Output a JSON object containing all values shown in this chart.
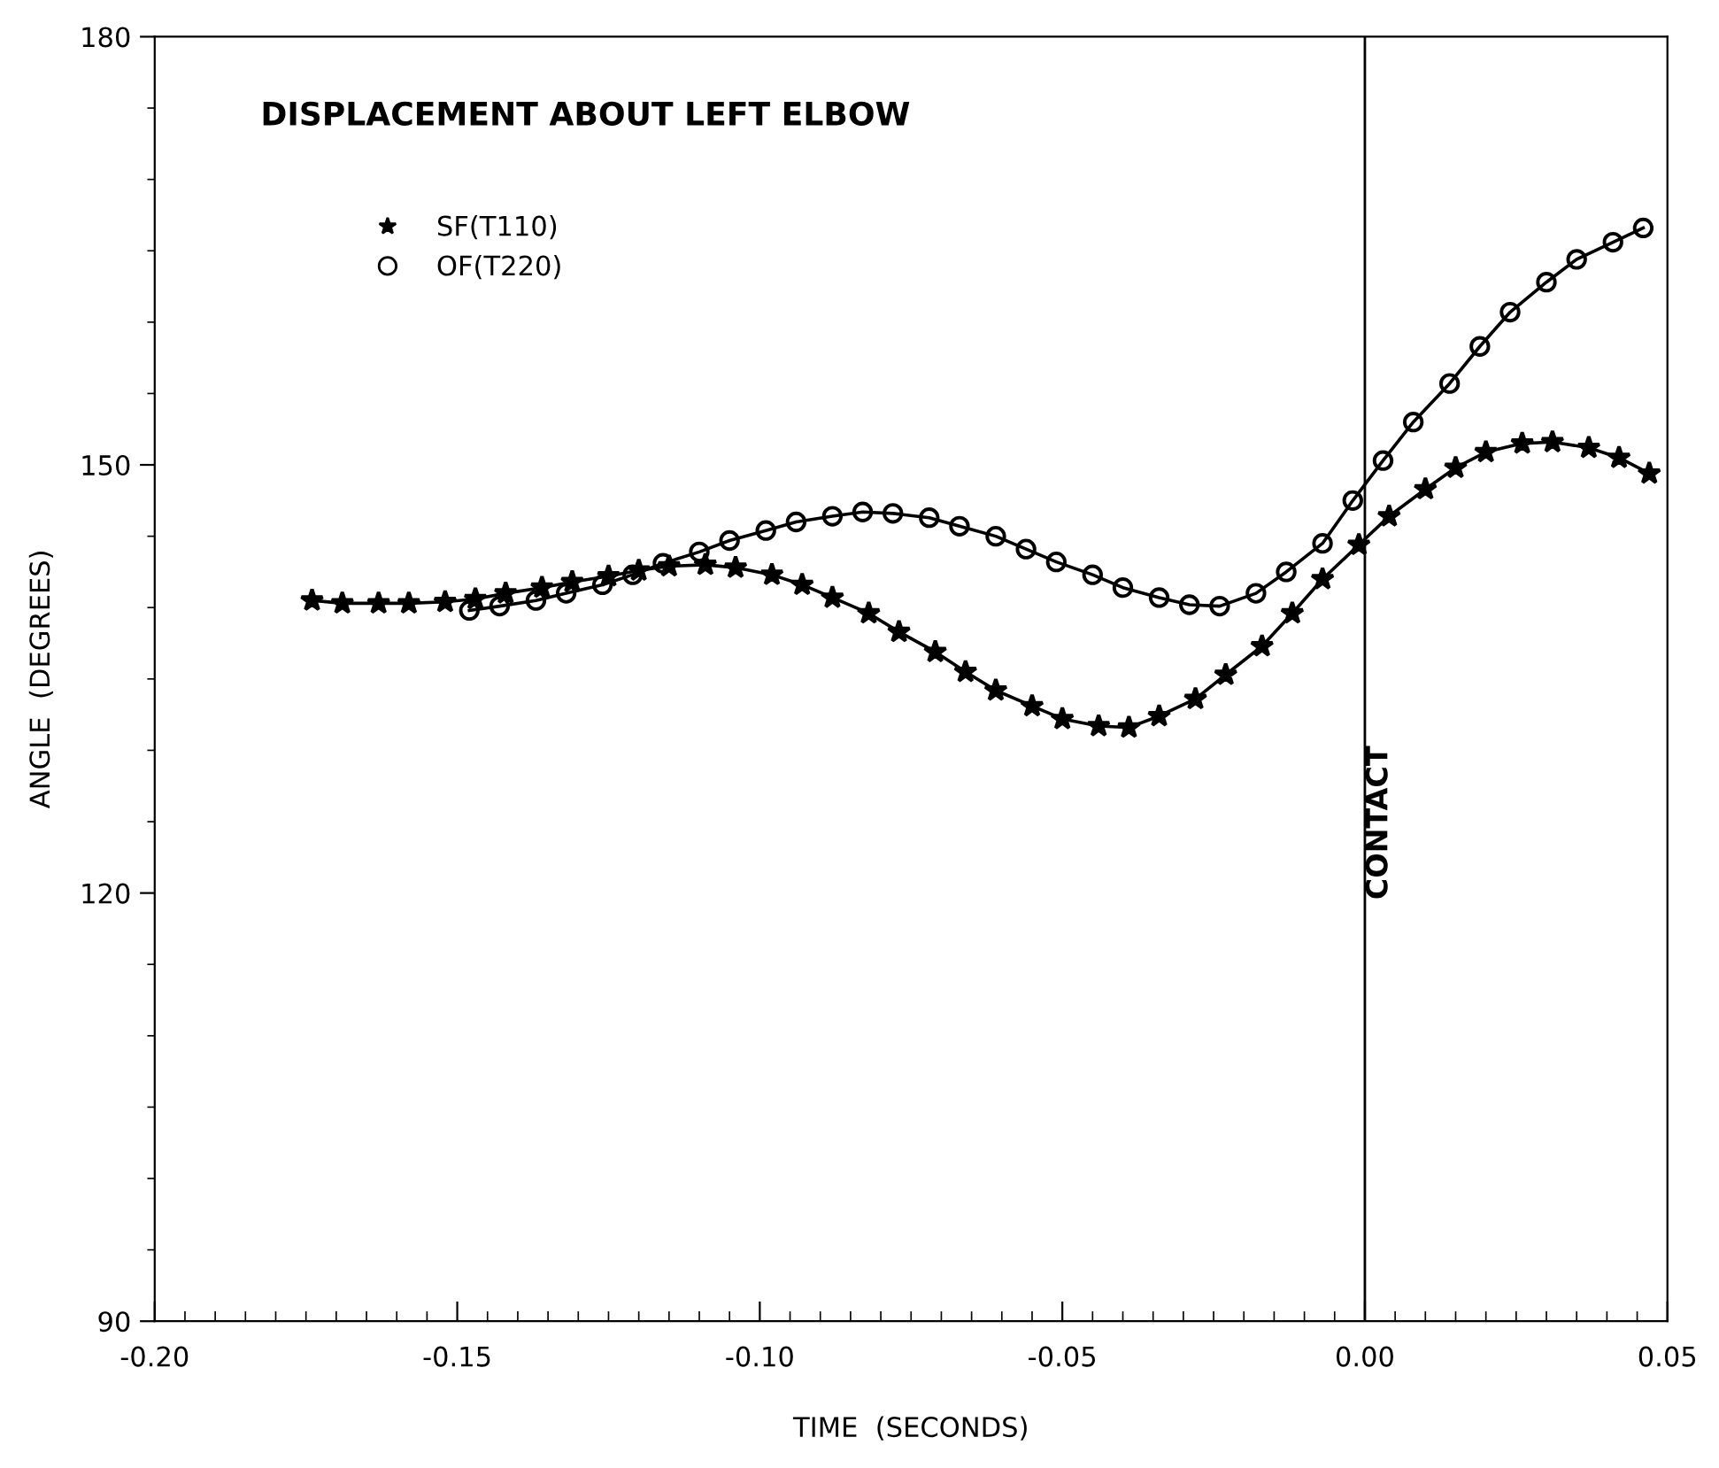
{
  "chart_data": {
    "type": "line",
    "title": "DISPLACEMENT ABOUT LEFT ELBOW",
    "xlabel": "TIME  (SECONDS)",
    "ylabel": "ANGLE  (DEGREES)",
    "xlim": [
      -0.2,
      0.05
    ],
    "xticks": [
      {
        "value": -0.2,
        "label": "-0.20"
      },
      {
        "value": -0.15,
        "label": "-0.15"
      },
      {
        "value": -0.1,
        "label": "-0.10"
      },
      {
        "value": -0.05,
        "label": "-0.05"
      },
      {
        "value": 0,
        "label": "0.00"
      },
      {
        "value": 0.05,
        "label": "0.05"
      }
    ],
    "ylim": [
      90,
      180
    ],
    "yticks": [
      90,
      120,
      150,
      180
    ],
    "grid": false,
    "legend": "top left",
    "ref_lines": [
      {
        "axis": "x",
        "value": 0,
        "label": "CONTACT",
        "color": "#000000"
      }
    ],
    "series": [
      {
        "name": "SF(T110)",
        "color": "#000000",
        "marker": "star",
        "x": [
          -0.174,
          -0.169,
          -0.163,
          -0.158,
          -0.152,
          -0.147,
          -0.142,
          -0.136,
          -0.131,
          -0.125,
          -0.12,
          -0.115,
          -0.109,
          -0.104,
          -0.098,
          -0.093,
          -0.088,
          -0.082,
          -0.077,
          -0.071,
          -0.066,
          -0.061,
          -0.055,
          -0.05,
          -0.044,
          -0.039,
          -0.034,
          -0.028,
          -0.023,
          -0.017,
          -0.012,
          -0.007,
          -0.001,
          0.004,
          0.01,
          0.015,
          0.02,
          0.026,
          0.031,
          0.037,
          0.042,
          0.047
        ],
        "values": [
          140.5,
          140.3,
          140.3,
          140.3,
          140.4,
          140.6,
          141.0,
          141.4,
          141.8,
          142.2,
          142.6,
          142.9,
          143.0,
          142.8,
          142.3,
          141.6,
          140.7,
          139.6,
          138.3,
          136.9,
          135.5,
          134.2,
          133.1,
          132.2,
          131.7,
          131.6,
          132.4,
          133.6,
          135.3,
          137.3,
          139.6,
          142.0,
          144.4,
          146.4,
          148.3,
          149.8,
          150.9,
          151.5,
          151.6,
          151.2,
          150.5,
          149.4
        ]
      },
      {
        "name": "OF(T220)",
        "color": "#000000",
        "marker": "circle",
        "x": [
          -0.148,
          -0.143,
          -0.137,
          -0.132,
          -0.126,
          -0.121,
          -0.116,
          -0.11,
          -0.105,
          -0.099,
          -0.094,
          -0.088,
          -0.083,
          -0.078,
          -0.072,
          -0.067,
          -0.061,
          -0.056,
          -0.051,
          -0.045,
          -0.04,
          -0.034,
          -0.029,
          -0.024,
          -0.018,
          -0.013,
          -0.007,
          -0.002,
          0.003,
          0.008,
          0.014,
          0.019,
          0.024,
          0.03,
          0.035,
          0.041,
          0.046
        ],
        "values": [
          139.8,
          140.1,
          140.5,
          141.0,
          141.6,
          142.3,
          143.1,
          143.9,
          144.7,
          145.4,
          146.0,
          146.4,
          146.7,
          146.6,
          146.3,
          145.7,
          145.0,
          144.1,
          143.2,
          142.3,
          141.4,
          140.7,
          140.2,
          140.1,
          141.0,
          142.5,
          144.5,
          147.5,
          150.3,
          153.0,
          155.7,
          158.3,
          160.7,
          162.8,
          164.4,
          165.6,
          166.6
        ]
      }
    ]
  }
}
